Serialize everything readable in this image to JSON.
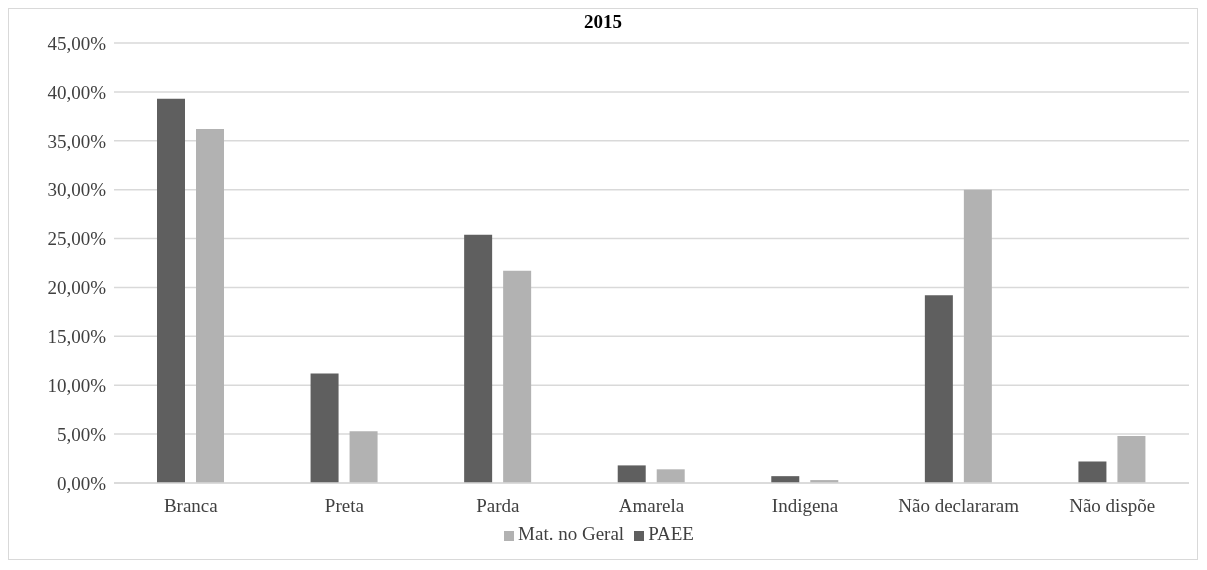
{
  "chart_data": {
    "type": "bar",
    "title": "2015",
    "categories": [
      "Branca",
      "Preta",
      "Parda",
      "Amarela",
      "Indigena",
      "Não declararam",
      "Não dispõe"
    ],
    "series": [
      {
        "name": "PAEE",
        "color": "#5f5f5f",
        "values": [
          39.3,
          11.2,
          25.4,
          1.8,
          0.7,
          19.2,
          2.2
        ]
      },
      {
        "name": "Mat. no Geral",
        "color": "#b2b2b2",
        "values": [
          36.2,
          5.3,
          21.7,
          1.4,
          0.3,
          30.0,
          4.8
        ]
      }
    ],
    "ylim": [
      0,
      45
    ],
    "yticks": [
      {
        "value": 0,
        "label": "0,00%"
      },
      {
        "value": 5,
        "label": "5,00%"
      },
      {
        "value": 10,
        "label": "10,00%"
      },
      {
        "value": 15,
        "label": "15,00%"
      },
      {
        "value": 20,
        "label": "20,00%"
      },
      {
        "value": 25,
        "label": "25,00%"
      },
      {
        "value": 30,
        "label": "30,00%"
      },
      {
        "value": 35,
        "label": "35,00%"
      },
      {
        "value": 40,
        "label": "40,00%"
      },
      {
        "value": 45,
        "label": "45,00%"
      }
    ],
    "grid": "y",
    "legend": "bottom"
  }
}
